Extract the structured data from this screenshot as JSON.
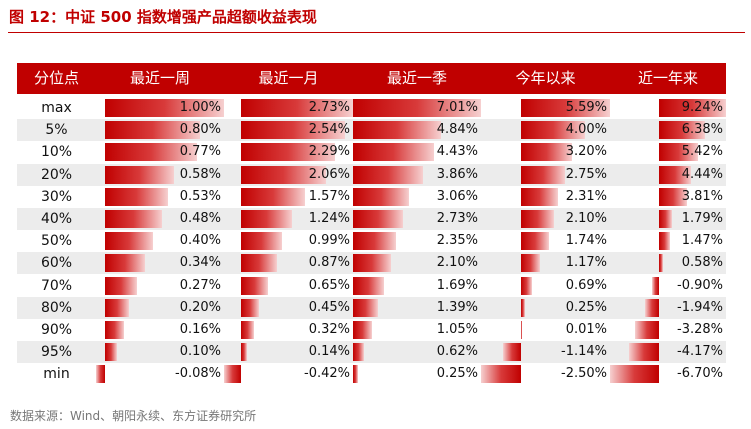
{
  "title": "图 12：中证 500 指数增强产品超额收益表现",
  "source": "数据来源：Wind、朝阳永续、东方证券研究所",
  "colors": {
    "accent": "#c00000",
    "alt_row": "#ececec"
  },
  "table": {
    "headers": [
      "分位点",
      "最近一周",
      "最近一月",
      "最近一季",
      "今年以来",
      "近一年来"
    ],
    "rows": [
      {
        "label": "max",
        "values": [
          "1.00%",
          "2.73%",
          "7.01%",
          "5.59%",
          "9.24%"
        ],
        "numbers": [
          1.0,
          2.73,
          7.01,
          5.59,
          9.24
        ]
      },
      {
        "label": "5%",
        "values": [
          "0.80%",
          "2.54%",
          "4.84%",
          "4.00%",
          "6.38%"
        ],
        "numbers": [
          0.8,
          2.54,
          4.84,
          4.0,
          6.38
        ]
      },
      {
        "label": "10%",
        "values": [
          "0.77%",
          "2.29%",
          "4.43%",
          "3.20%",
          "5.42%"
        ],
        "numbers": [
          0.77,
          2.29,
          4.43,
          3.2,
          5.42
        ]
      },
      {
        "label": "20%",
        "values": [
          "0.58%",
          "2.06%",
          "3.86%",
          "2.75%",
          "4.44%"
        ],
        "numbers": [
          0.58,
          2.06,
          3.86,
          2.75,
          4.44
        ]
      },
      {
        "label": "30%",
        "values": [
          "0.53%",
          "1.57%",
          "3.06%",
          "2.31%",
          "3.81%"
        ],
        "numbers": [
          0.53,
          1.57,
          3.06,
          2.31,
          3.81
        ]
      },
      {
        "label": "40%",
        "values": [
          "0.48%",
          "1.24%",
          "2.73%",
          "2.10%",
          "1.79%"
        ],
        "numbers": [
          0.48,
          1.24,
          2.73,
          2.1,
          1.79
        ]
      },
      {
        "label": "50%",
        "values": [
          "0.40%",
          "0.99%",
          "2.35%",
          "1.74%",
          "1.47%"
        ],
        "numbers": [
          0.4,
          0.99,
          2.35,
          1.74,
          1.47
        ]
      },
      {
        "label": "60%",
        "values": [
          "0.34%",
          "0.87%",
          "2.10%",
          "1.17%",
          "0.58%"
        ],
        "numbers": [
          0.34,
          0.87,
          2.1,
          1.17,
          0.58
        ]
      },
      {
        "label": "70%",
        "values": [
          "0.27%",
          "0.65%",
          "1.69%",
          "0.69%",
          "-0.90%"
        ],
        "numbers": [
          0.27,
          0.65,
          1.69,
          0.69,
          -0.9
        ]
      },
      {
        "label": "80%",
        "values": [
          "0.20%",
          "0.45%",
          "1.39%",
          "0.25%",
          "-1.94%"
        ],
        "numbers": [
          0.2,
          0.45,
          1.39,
          0.25,
          -1.94
        ]
      },
      {
        "label": "90%",
        "values": [
          "0.16%",
          "0.32%",
          "1.05%",
          "0.01%",
          "-3.28%"
        ],
        "numbers": [
          0.16,
          0.32,
          1.05,
          0.01,
          -3.28
        ]
      },
      {
        "label": "95%",
        "values": [
          "0.10%",
          "0.14%",
          "0.62%",
          "-1.14%",
          "-4.17%"
        ],
        "numbers": [
          0.1,
          0.14,
          0.62,
          -1.14,
          -4.17
        ]
      },
      {
        "label": "min",
        "values": [
          "-0.08%",
          "-0.42%",
          "0.25%",
          "-2.50%",
          "-6.70%"
        ],
        "numbers": [
          -0.08,
          -0.42,
          0.25,
          -2.5,
          -6.7
        ]
      }
    ]
  }
}
